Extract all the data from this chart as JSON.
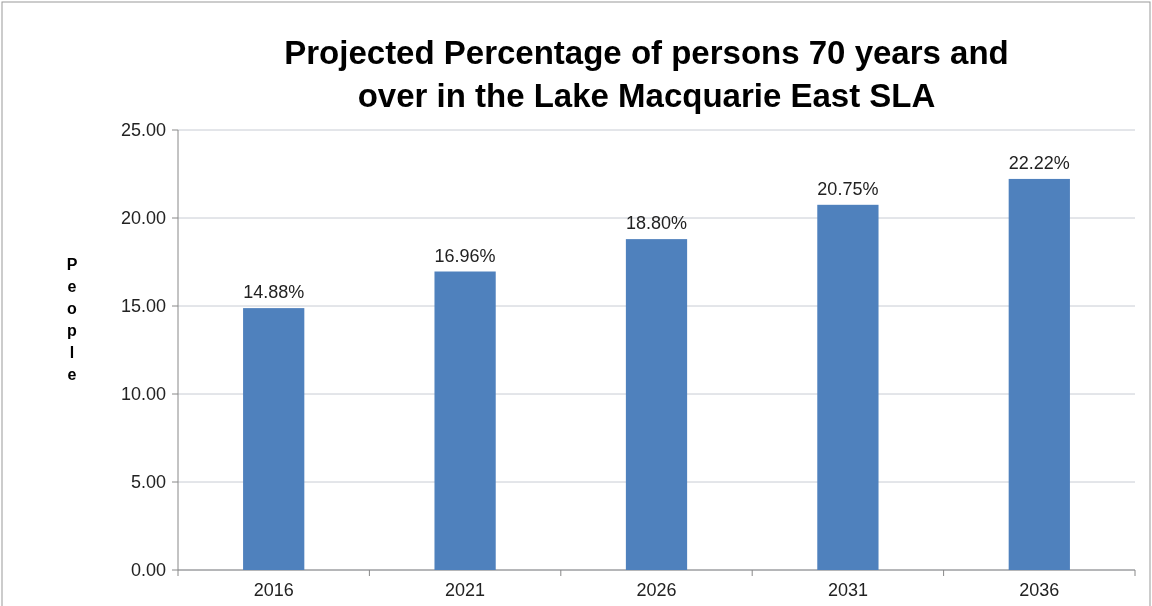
{
  "chart_data": {
    "type": "bar",
    "title": "Projected Percentage of persons 70 years and over in the Lake Macquarie East SLA",
    "ylabel": "People",
    "categories": [
      "2016",
      "2021",
      "2026",
      "2031",
      "2036"
    ],
    "values": [
      14.88,
      16.96,
      18.8,
      20.75,
      22.22
    ],
    "value_labels": [
      "14.88%",
      "16.96%",
      "18.80%",
      "20.75%",
      "22.22%"
    ],
    "color": "#4f81bd",
    "ylim": [
      0,
      25
    ],
    "yticks": [
      {
        "value": 0,
        "label": "0.00"
      },
      {
        "value": 5,
        "label": "5.00"
      },
      {
        "value": 10,
        "label": "10.00"
      },
      {
        "value": 15,
        "label": "15.00"
      },
      {
        "value": 20,
        "label": "20.00"
      },
      {
        "value": 25,
        "label": "25.00"
      }
    ],
    "grid": "y"
  }
}
